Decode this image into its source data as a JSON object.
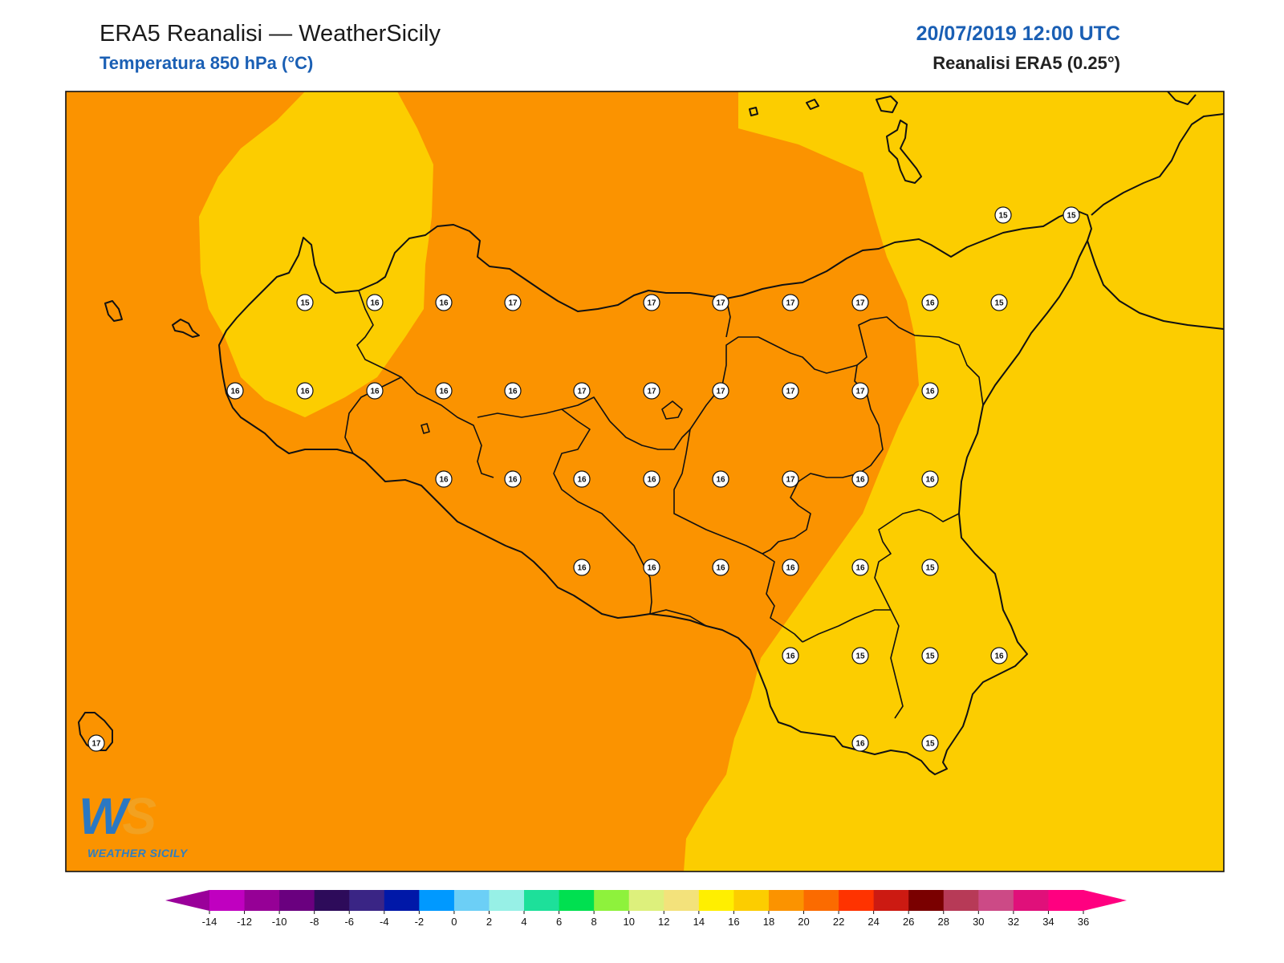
{
  "header": {
    "title": "ERA5 Reanalisi — WeatherSicily",
    "subtitle": "Temperatura 850 hPa (°C)",
    "datetime": "20/07/2019 12:00 UTC",
    "source": "Reanalisi ERA5 (0.25°)"
  },
  "logo": {
    "mark": "WS",
    "name": "WEATHER SICILY"
  },
  "fill_colors": {
    "band_14_16": "#fccd00",
    "band_16_18": "#fb9300"
  },
  "station_values": [
    15,
    15,
    15,
    16,
    16,
    17,
    17,
    17,
    17,
    17,
    16,
    15,
    16,
    16,
    16,
    16,
    16,
    17,
    17,
    17,
    17,
    17,
    16,
    16,
    16,
    16,
    16,
    16,
    17,
    16,
    16,
    16,
    16,
    16,
    16,
    16,
    15,
    16,
    15,
    15,
    16,
    17,
    16,
    15
  ],
  "colorbar": {
    "ticks": [
      "-14",
      "-12",
      "-10",
      "-8",
      "-6",
      "-4",
      "-2",
      "0",
      "2",
      "4",
      "6",
      "8",
      "10",
      "12",
      "14",
      "16",
      "18",
      "20",
      "22",
      "24",
      "26",
      "28",
      "30",
      "32",
      "34",
      "36"
    ],
    "colors": [
      "#c000c0",
      "#960096",
      "#6a007f",
      "#2d0b5a",
      "#3a2585",
      "#0018a8",
      "#0099ff",
      "#6ccff6",
      "#97f0e6",
      "#1de09a",
      "#00e050",
      "#8ef23c",
      "#ddf07c",
      "#f3e27b",
      "#ffef00",
      "#fccd00",
      "#fb9300",
      "#fb6b00",
      "#ff3300",
      "#cc1a12",
      "#7a0000",
      "#b73a57",
      "#cc4a86",
      "#e0107a",
      "#ff0080"
    ],
    "under_color": "#9a009a",
    "over_color": "#ff0080"
  }
}
